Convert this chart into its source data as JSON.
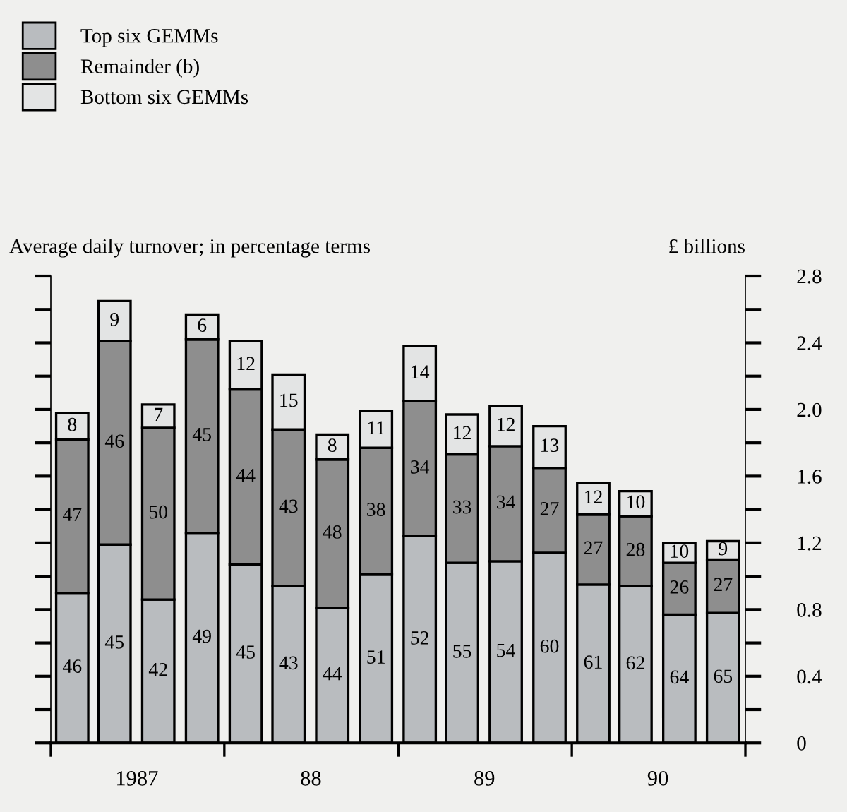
{
  "chart_data": {
    "type": "bar",
    "stacked": true,
    "title": "Average daily turnover; in percentage terms",
    "ylabel": "£ billions",
    "x": [
      "1987-02-15",
      "1987-05-15",
      "1987-08-15",
      "1987-11-15",
      "1988-02-15",
      "1988-05-15",
      "1988-08-15",
      "1988-11-15",
      "1989-02-15",
      "1989-05-15",
      "1989-08-15",
      "1989-11-15",
      "1990-02-15",
      "1990-05-15",
      "1990-08-15",
      "1990-11-15"
    ],
    "series": [
      {
        "name": "Top six GEMMs",
        "color": "#b9bcbf",
        "values": [
          0.9,
          1.19,
          0.86,
          1.26,
          1.07,
          0.94,
          0.81,
          1.01,
          1.24,
          1.08,
          1.09,
          1.14,
          0.95,
          0.94,
          0.77,
          0.78
        ]
      },
      {
        "name": "Remainder (b)",
        "color": "#8e8e8e",
        "values": [
          0.92,
          1.22,
          1.03,
          1.16,
          1.05,
          0.94,
          0.89,
          0.76,
          0.81,
          0.65,
          0.69,
          0.51,
          0.42,
          0.42,
          0.31,
          0.32
        ]
      },
      {
        "name": "Bottom six GEMMs",
        "color": "#e3e4e4",
        "values": [
          0.16,
          0.24,
          0.14,
          0.15,
          0.29,
          0.33,
          0.15,
          0.22,
          0.33,
          0.24,
          0.24,
          0.25,
          0.19,
          0.15,
          0.12,
          0.11
        ]
      }
    ],
    "annotations": [
      "46",
      "45",
      "42",
      "49",
      "45",
      "43",
      "44",
      "51",
      "52",
      "55",
      "54",
      "60",
      "61",
      "62",
      "64",
      "65",
      "47",
      "46",
      "50",
      "45",
      "44",
      "43",
      "48",
      "38",
      "34",
      "33",
      "34",
      "27",
      "27",
      "28",
      "26",
      "27",
      "8",
      "9",
      "7",
      "6",
      "12",
      "15",
      "8",
      "11",
      "14",
      "12",
      "12",
      "13",
      "12",
      "10",
      "10",
      "9"
    ],
    "xlim": [
      "1987-01-01",
      "1991-01-01"
    ],
    "xticks": [
      {
        "value": "1987-01-01",
        "label": null
      },
      {
        "value": "1987-07-01",
        "label": "1987"
      },
      {
        "value": "1988-01-01",
        "label": null
      },
      {
        "value": "1988-07-01",
        "label": "88"
      },
      {
        "value": "1989-01-01",
        "label": null
      },
      {
        "value": "1989-07-01",
        "label": "89"
      },
      {
        "value": "1990-01-01",
        "label": null
      },
      {
        "value": "1990-07-01",
        "label": "90"
      },
      {
        "value": "1991-01-01",
        "label": null
      }
    ],
    "ylim": [
      0,
      2.8
    ],
    "yticks": [
      0,
      {
        "value": 0.2,
        "label": null
      },
      0.4,
      {
        "value": 0.6,
        "label": null
      },
      {
        "value": 0.8,
        "label": "0.8"
      },
      {
        "value": 1.0,
        "label": null
      },
      {
        "value": 1.2,
        "label": "1.2"
      },
      {
        "value": 1.4,
        "label": null
      },
      {
        "value": 1.6,
        "label": "1.6"
      },
      {
        "value": 1.8,
        "label": null
      },
      {
        "value": 2.0,
        "label": "2.0"
      },
      {
        "value": 2.2,
        "label": null
      },
      {
        "value": 2.4,
        "label": "2.4"
      },
      {
        "value": 2.6,
        "label": null
      },
      {
        "value": 2.8,
        "label": "2.8"
      }
    ],
    "grid": false,
    "legend": "top left"
  }
}
